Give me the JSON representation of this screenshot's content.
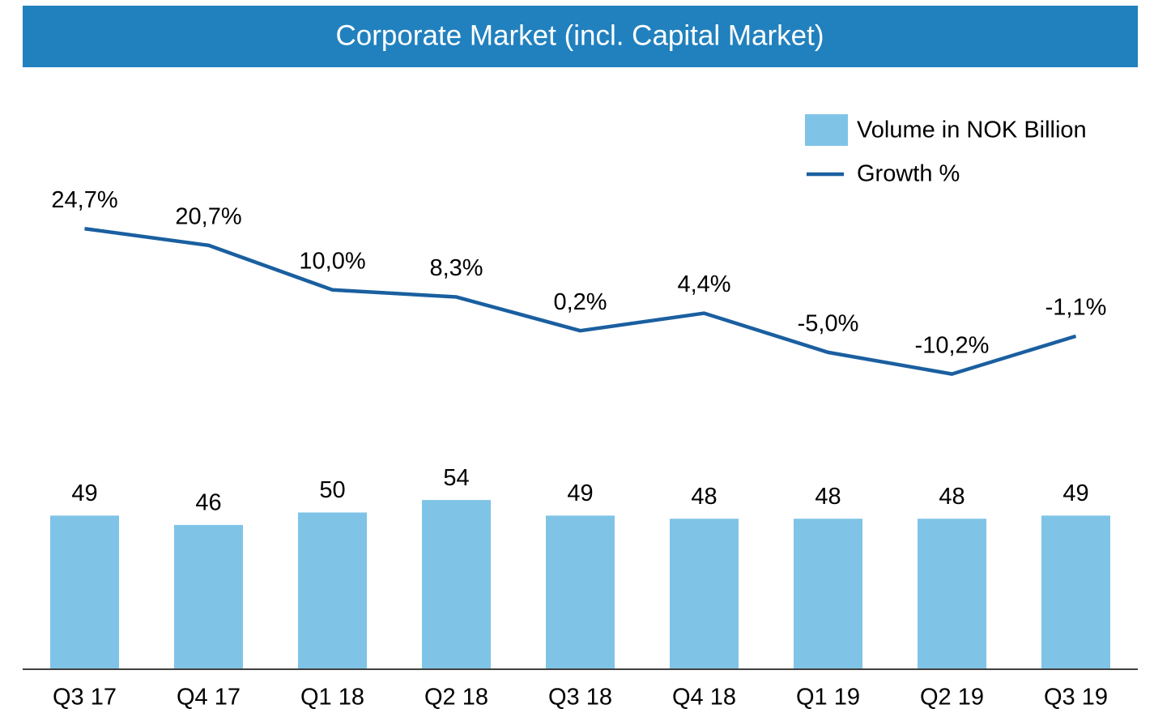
{
  "chart_data": {
    "type": "bar_line",
    "title": "Corporate Market (incl. Capital Market)",
    "categories": [
      "Q3 17",
      "Q4 17",
      "Q1 18",
      "Q2 18",
      "Q3 18",
      "Q4 18",
      "Q1 19",
      "Q2 19",
      "Q3 19"
    ],
    "series": [
      {
        "name": "Volume in NOK Billion",
        "type": "bar",
        "color": "#7fc4e6",
        "values": [
          49,
          46,
          50,
          54,
          49,
          48,
          48,
          48,
          49
        ]
      },
      {
        "name": "Growth %",
        "type": "line",
        "axis": "y2",
        "color": "#1a5fa0",
        "values": [
          24.7,
          20.7,
          10.0,
          8.3,
          0.2,
          4.4,
          -5.0,
          -10.2,
          -1.1
        ],
        "value_labels": [
          "24,7%",
          "20,7%",
          "10,0%",
          "8,3%",
          "0,2%",
          "4,4%",
          "-5,0%",
          "-10,2%",
          "-1,1%"
        ]
      }
    ],
    "ylim": [
      0,
      100
    ],
    "y2lim": [
      -20,
      30
    ],
    "legend": "top-right"
  }
}
